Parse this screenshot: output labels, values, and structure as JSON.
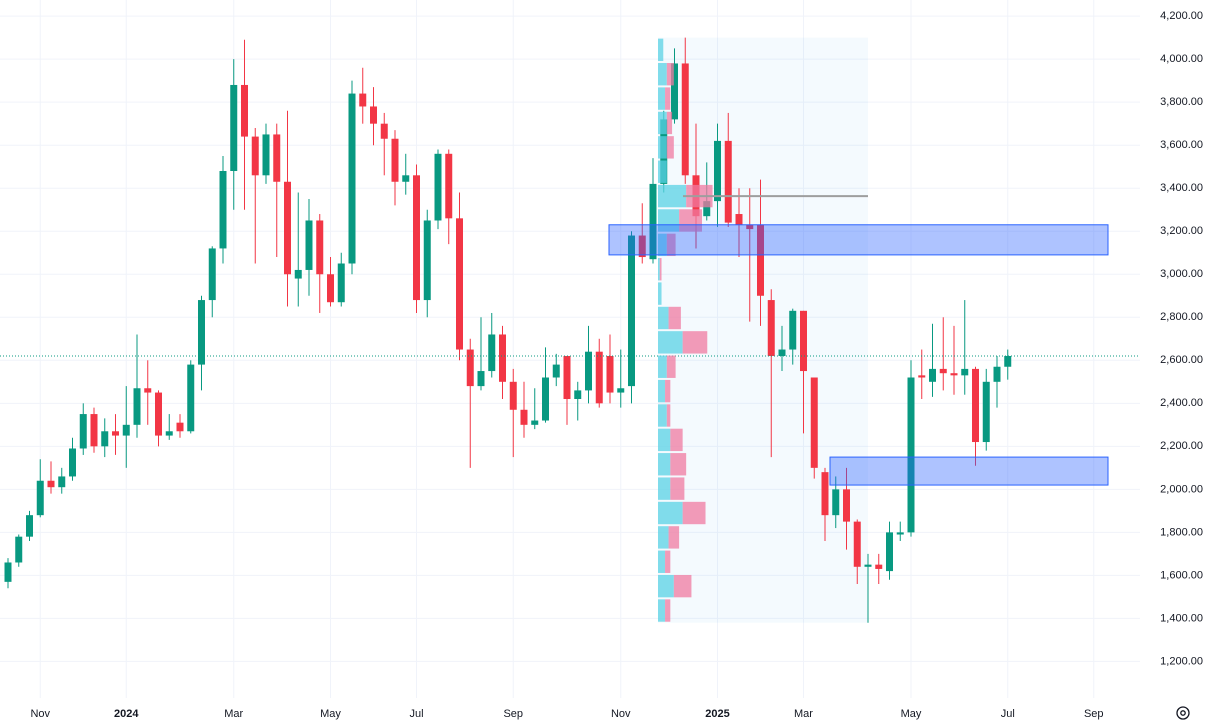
{
  "chart_data": {
    "type": "candlestick",
    "up_color": "#089981",
    "down_color": "#f23645",
    "grid": true,
    "categories": [
      null,
      null,
      null,
      "Nov",
      null,
      null,
      null,
      null,
      null,
      null,
      null,
      "2024",
      null,
      null,
      null,
      null,
      null,
      null,
      null,
      null,
      null,
      "Mar",
      null,
      null,
      null,
      null,
      null,
      null,
      null,
      null,
      "May",
      null,
      null,
      null,
      null,
      null,
      null,
      null,
      "Jul",
      null,
      null,
      null,
      null,
      null,
      null,
      null,
      null,
      "Sep",
      null,
      null,
      null,
      null,
      null,
      null,
      null,
      null,
      null,
      "Nov",
      null,
      null,
      null,
      null,
      null,
      null,
      null,
      null,
      "2025",
      null,
      null,
      null,
      null,
      null,
      null,
      null,
      "Mar",
      null,
      null,
      null,
      null,
      null,
      null,
      null,
      null,
      null,
      "May",
      null,
      null,
      null,
      null,
      null,
      null,
      null,
      null,
      "Jul",
      null,
      null,
      null,
      null,
      null,
      null,
      null,
      "Sep",
      null,
      null,
      null,
      null
    ],
    "open": [
      1570,
      1660,
      1780,
      1880,
      2040,
      2010,
      2060,
      2190,
      2350,
      2200,
      2270,
      2250,
      2300,
      2470,
      2450,
      2250,
      2310,
      2270,
      2580,
      2880,
      3120,
      3480,
      3880,
      3640,
      3460,
      3650,
      3430,
      2980,
      3020,
      3250,
      3000,
      2870,
      3050,
      3840,
      3780,
      3700,
      3630,
      3430,
      3460,
      2880,
      3250,
      3560,
      3260,
      2650,
      2480,
      2550,
      2720,
      2500,
      2370,
      2300,
      2320,
      2520,
      2620,
      2420,
      2460,
      2640,
      2620,
      2450,
      2480,
      3180,
      3070,
      3420,
      3720,
      3980,
      3460,
      3270,
      3340,
      3620,
      3280,
      3230,
      3230,
      2880,
      2620,
      2650,
      2830,
      2520,
      2080,
      1880,
      2000,
      1850,
      1640,
      1650,
      1620,
      1790,
      1800,
      2530,
      2500,
      2560,
      2540,
      2530,
      2560,
      2220,
      2500,
      2570,
      null,
      null,
      null,
      null,
      null,
      null,
      null,
      null,
      null,
      null,
      null,
      null
    ],
    "high": [
      1680,
      1790,
      1900,
      2140,
      2130,
      2100,
      2240,
      2400,
      2380,
      2330,
      2350,
      2480,
      2720,
      2600,
      2460,
      2350,
      2350,
      2600,
      2900,
      3130,
      3550,
      4000,
      4090,
      3680,
      3700,
      3700,
      3760,
      3380,
      3350,
      3280,
      3080,
      3100,
      3900,
      3960,
      3870,
      3750,
      3670,
      3560,
      3510,
      3300,
      3580,
      3580,
      3380,
      2700,
      2800,
      2820,
      2760,
      2560,
      2500,
      2470,
      2660,
      2630,
      2620,
      2500,
      2760,
      2700,
      2720,
      2650,
      3200,
      3330,
      3540,
      3760,
      4050,
      4100,
      3700,
      3520,
      3700,
      3750,
      3400,
      3400,
      3440,
      2930,
      2760,
      2840,
      2830,
      2520,
      2100,
      2060,
      2100,
      1860,
      1700,
      1700,
      1850,
      1850,
      2600,
      2650,
      2770,
      2800,
      2760,
      2880,
      2570,
      2560,
      2620,
      2650,
      null,
      null,
      null,
      null,
      null,
      null,
      null,
      null,
      null,
      null,
      null,
      null
    ],
    "low": [
      1540,
      1640,
      1760,
      1870,
      1980,
      1980,
      2040,
      2160,
      2170,
      2150,
      2160,
      2100,
      2240,
      2300,
      2200,
      2230,
      2240,
      2260,
      2460,
      2800,
      3050,
      3300,
      3300,
      3050,
      3420,
      3080,
      2850,
      2850,
      2900,
      2820,
      2850,
      2850,
      3000,
      3700,
      3600,
      3460,
      3320,
      3370,
      2820,
      2800,
      3210,
      3140,
      2600,
      2100,
      2460,
      2520,
      2420,
      2150,
      2240,
      2280,
      2310,
      2480,
      2300,
      2320,
      2400,
      2380,
      2400,
      2380,
      2400,
      3050,
      3050,
      3380,
      3700,
      3420,
      3120,
      3250,
      3220,
      3220,
      3080,
      2780,
      2760,
      2150,
      2550,
      2580,
      2260,
      2050,
      1760,
      1820,
      1720,
      1560,
      1380,
      1560,
      1580,
      1760,
      1780,
      2420,
      2430,
      2460,
      2440,
      2440,
      2110,
      2180,
      2380,
      2510,
      null,
      null,
      null,
      null,
      null,
      null,
      null,
      null,
      null,
      null,
      null,
      null
    ],
    "close": [
      1660,
      1780,
      1880,
      2040,
      2010,
      2060,
      2190,
      2350,
      2200,
      2270,
      2250,
      2300,
      2470,
      2450,
      2250,
      2270,
      2270,
      2580,
      2880,
      3120,
      3480,
      3880,
      3640,
      3460,
      3650,
      3430,
      3000,
      3020,
      3250,
      3000,
      2870,
      3050,
      3840,
      3780,
      3700,
      3630,
      3430,
      3460,
      2880,
      3250,
      3560,
      3260,
      2650,
      2480,
      2550,
      2720,
      2500,
      2370,
      2300,
      2320,
      2520,
      2580,
      2420,
      2460,
      2640,
      2400,
      2450,
      2470,
      3180,
      3080,
      3420,
      3720,
      3980,
      3460,
      3270,
      3340,
      3620,
      3240,
      3230,
      3210,
      2900,
      2620,
      2650,
      2830,
      2550,
      2100,
      1880,
      2000,
      1850,
      1640,
      1650,
      1630,
      1800,
      1800,
      2520,
      2520,
      2560,
      2540,
      2530,
      2560,
      2220,
      2500,
      2570,
      2620,
      null,
      null,
      null,
      null,
      null,
      null,
      null,
      null,
      null,
      null,
      null,
      null
    ],
    "ylim": [
      1030,
      4275
    ],
    "yticks": [
      {
        "value": 1200,
        "label": "1,200.00"
      },
      {
        "value": 1400,
        "label": "1,400.00"
      },
      {
        "value": 1600,
        "label": "1,600.00"
      },
      {
        "value": 1800,
        "label": "1,800.00"
      },
      {
        "value": 2000,
        "label": "2,000.00"
      },
      {
        "value": 2200,
        "label": "2,200.00"
      },
      {
        "value": 2400,
        "label": "2,400.00"
      },
      {
        "value": 2600,
        "label": "2,600.00"
      },
      {
        "value": 2800,
        "label": "2,800.00"
      },
      {
        "value": 3000,
        "label": "3,000.00"
      },
      {
        "value": 3200,
        "label": "3,200.00"
      },
      {
        "value": 3400,
        "label": "3,400.00"
      },
      {
        "value": 3600,
        "label": "3,600.00"
      },
      {
        "value": 3800,
        "label": "3,800.00"
      },
      {
        "value": 4000,
        "label": "4,000.00"
      },
      {
        "value": 4200,
        "label": "4,200.00"
      }
    ],
    "volume_profile": {
      "price_range": [
        1380,
        4100
      ],
      "up_color": "#5ad1e4",
      "down_color": "#f07aa0",
      "up": [
        8,
        18,
        8,
        12,
        28,
        14,
        14,
        14,
        10,
        8,
        10,
        28,
        12,
        4,
        2,
        10,
        24,
        32,
        10,
        10,
        10,
        8,
        10,
        6
      ],
      "down": [
        6,
        20,
        6,
        12,
        26,
        16,
        18,
        14,
        4,
        6,
        10,
        28,
        14,
        0,
        2,
        10,
        26,
        30,
        0,
        8,
        6,
        6,
        8,
        0
      ]
    },
    "zones": [
      {
        "top": 3230,
        "bottom": 3090,
        "color": "#2962ff"
      },
      {
        "top": 2150,
        "bottom": 2020,
        "color": "#2962ff"
      }
    ]
  }
}
